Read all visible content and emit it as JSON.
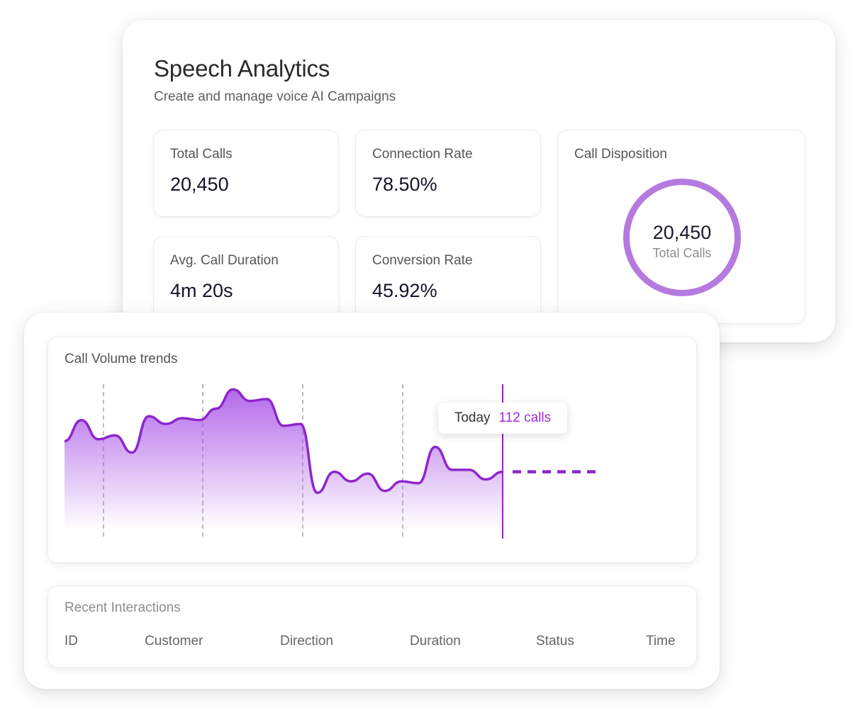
{
  "header": {
    "title": "Speech Analytics",
    "subtitle": "Create and manage voice AI Campaigns"
  },
  "stats": {
    "total_calls": {
      "label": "Total Calls",
      "value": "20,450"
    },
    "connection_rate": {
      "label": "Connection Rate",
      "value": "78.50%"
    },
    "avg_duration": {
      "label": "Avg. Call Duration",
      "value": "4m 20s"
    },
    "conversion_rate": {
      "label": "Conversion Rate",
      "value": "45.92%"
    }
  },
  "disposition": {
    "label": "Call Disposition",
    "value": "20,450",
    "value_label": "Total Calls",
    "ring_color": "#b57ae0"
  },
  "trend": {
    "title": "Call Volume trends",
    "tooltip_label": "Today",
    "tooltip_value": "112 calls",
    "accent": "#9b2fd6"
  },
  "chart_data": {
    "type": "area",
    "title": "Call Volume trends",
    "xlabel": "",
    "ylabel": "",
    "grid": "vertical dashed",
    "series": [
      {
        "values": [
          128,
          139,
          129,
          131,
          122,
          141,
          137,
          140,
          139,
          145,
          155,
          149,
          150,
          136,
          137,
          101,
          112,
          107,
          111,
          102,
          107,
          106,
          125,
          113,
          113,
          108,
          112
        ],
        "highlight_index": 26,
        "forecast": "dotted flat"
      }
    ]
  },
  "recent": {
    "title": "Recent Interactions",
    "columns": [
      "ID",
      "Customer",
      "Direction",
      "Duration",
      "Status",
      "Time"
    ]
  }
}
